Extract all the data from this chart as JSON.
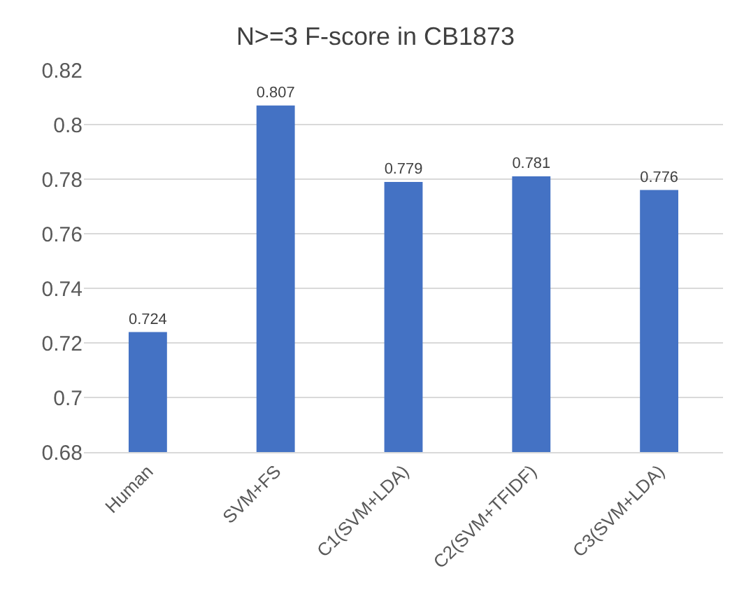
{
  "chart_data": {
    "type": "bar",
    "title": "N>=3 F-score in CB1873",
    "categories": [
      "Human",
      "SVM+FS",
      "C1(SVM+LDA)",
      "C2(SVM+TFIDF)",
      "C3(SVM+LDA)"
    ],
    "values": [
      0.724,
      0.807,
      0.779,
      0.781,
      0.776
    ],
    "color": "#4472c4",
    "ylim": [
      0.68,
      0.82
    ],
    "yticks": [
      0.68,
      0.7,
      0.72,
      0.74,
      0.76,
      0.78,
      0.8,
      0.82
    ],
    "grid": "y",
    "data_labels": true
  }
}
